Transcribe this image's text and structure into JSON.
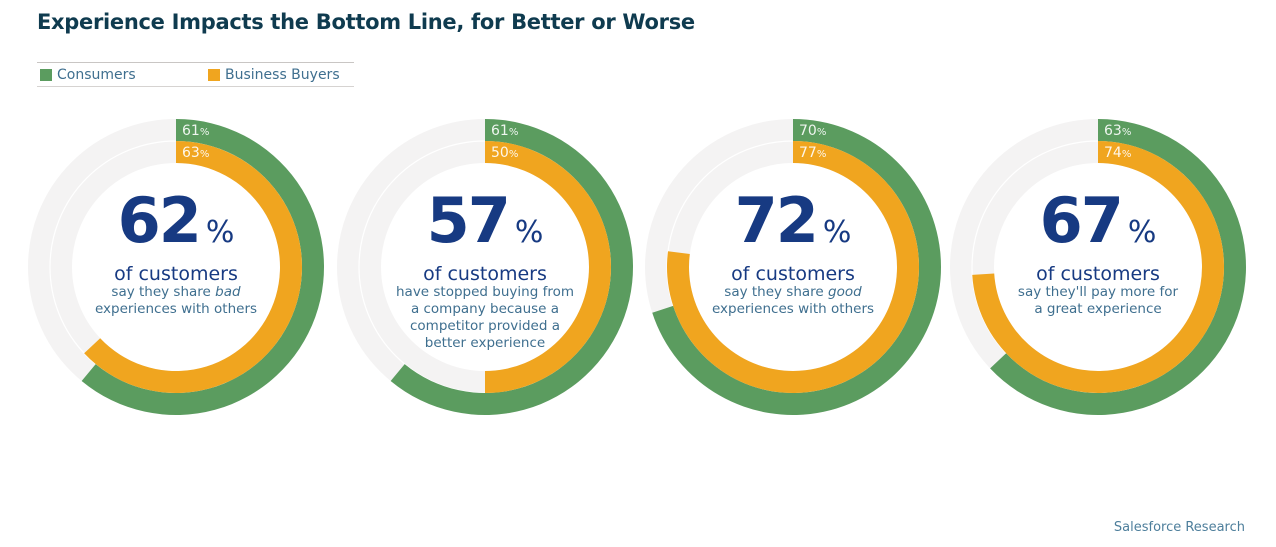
{
  "title": "Experience Impacts the Bottom Line, for Better or Worse",
  "source": "Salesforce Research",
  "colors": {
    "consumers": "#5b9c5f",
    "business_buyers": "#f0a51f",
    "track": "#f4f3f3",
    "headline": "#173a82"
  },
  "chart_data": {
    "type": "donut",
    "title": "Experience Impacts the Bottom Line, for Better or Worse",
    "legend": {
      "placement": "top-left",
      "entries": [
        "Consumers",
        "Business Buyers"
      ]
    },
    "series": [
      {
        "name": "Consumers"
      },
      {
        "name": "Business Buyers"
      }
    ],
    "charts": [
      {
        "headline": "62",
        "unit": "%",
        "subhead": "of customers",
        "lines": [
          [
            "say they share ",
            "bad",
            ""
          ],
          [
            "experiences with others",
            "",
            ""
          ]
        ],
        "consumers": 61,
        "business_buyers": 63,
        "consumers_label": "61",
        "business_buyers_label": "63"
      },
      {
        "headline": "57",
        "unit": "%",
        "subhead": "of customers",
        "lines": [
          [
            "have stopped buying from",
            "",
            ""
          ],
          [
            "a company because a",
            "",
            ""
          ],
          [
            "competitor provided a",
            "",
            ""
          ],
          [
            "better experience",
            "",
            ""
          ]
        ],
        "consumers": 61,
        "business_buyers": 50,
        "consumers_label": "61",
        "business_buyers_label": "50"
      },
      {
        "headline": "72",
        "unit": "%",
        "subhead": "of customers",
        "lines": [
          [
            "say they share ",
            "good",
            ""
          ],
          [
            "experiences with others",
            "",
            ""
          ]
        ],
        "consumers": 70,
        "business_buyers": 77,
        "consumers_label": "70",
        "business_buyers_label": "77"
      },
      {
        "headline": "67",
        "unit": "%",
        "subhead": "of customers",
        "lines": [
          [
            "say they'll pay more for",
            "",
            ""
          ],
          [
            "a great experience",
            "",
            ""
          ]
        ],
        "consumers": 63,
        "business_buyers": 74,
        "consumers_label": "63",
        "business_buyers_label": "74"
      }
    ]
  }
}
